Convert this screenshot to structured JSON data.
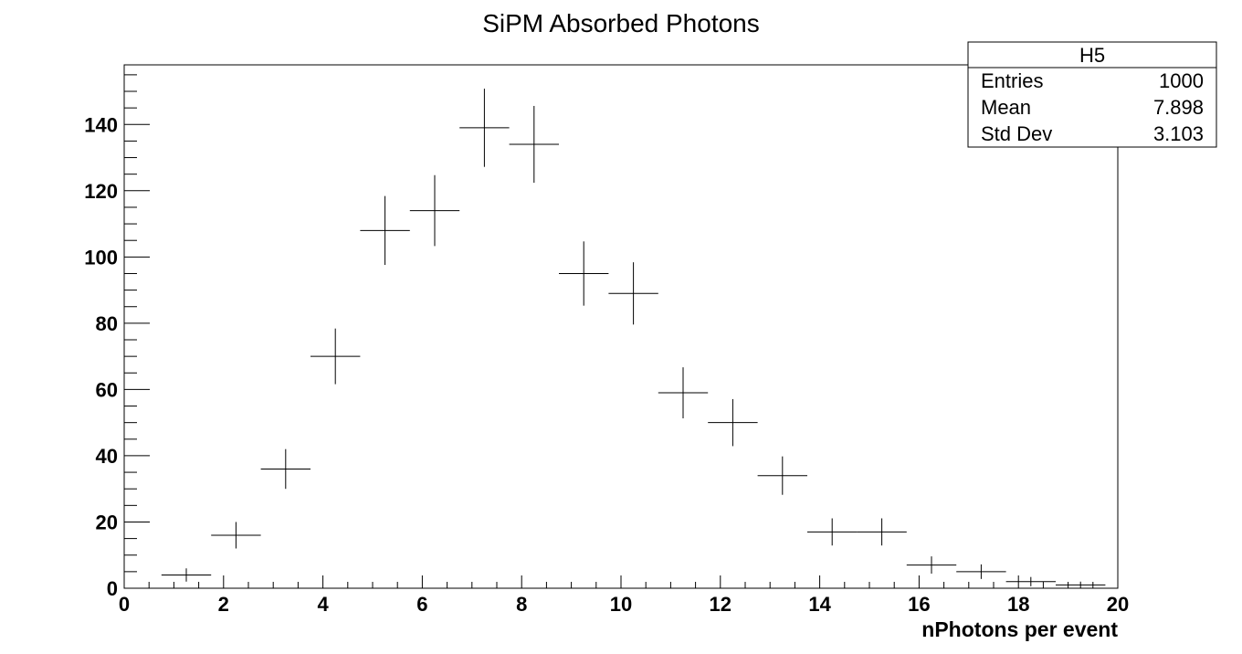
{
  "chart_data": {
    "type": "scatter",
    "title": "SiPM Absorbed Photons",
    "xlabel": "nPhotons per event",
    "ylabel": "",
    "xlim": [
      0,
      20
    ],
    "ylim": [
      0,
      158
    ],
    "x_major_ticks": [
      0,
      2,
      4,
      6,
      8,
      10,
      12,
      14,
      16,
      18,
      20
    ],
    "y_major_ticks": [
      0,
      20,
      40,
      60,
      80,
      100,
      120,
      140
    ],
    "grid": false,
    "bin_width": 1,
    "points": [
      {
        "x": 1.25,
        "y": 4,
        "err": 2
      },
      {
        "x": 2.25,
        "y": 16,
        "err": 4
      },
      {
        "x": 3.25,
        "y": 36,
        "err": 6
      },
      {
        "x": 4.25,
        "y": 70,
        "err": 8.4
      },
      {
        "x": 5.25,
        "y": 108,
        "err": 10.4
      },
      {
        "x": 6.25,
        "y": 114,
        "err": 10.7
      },
      {
        "x": 7.25,
        "y": 139,
        "err": 11.8
      },
      {
        "x": 8.25,
        "y": 134,
        "err": 11.6
      },
      {
        "x": 9.25,
        "y": 95,
        "err": 9.7
      },
      {
        "x": 10.25,
        "y": 89,
        "err": 9.4
      },
      {
        "x": 11.25,
        "y": 59,
        "err": 7.7
      },
      {
        "x": 12.25,
        "y": 50,
        "err": 7.1
      },
      {
        "x": 13.25,
        "y": 34,
        "err": 5.8
      },
      {
        "x": 14.25,
        "y": 17,
        "err": 4.1
      },
      {
        "x": 15.25,
        "y": 17,
        "err": 4.1
      },
      {
        "x": 16.25,
        "y": 7,
        "err": 2.6
      },
      {
        "x": 17.25,
        "y": 5,
        "err": 2.2
      },
      {
        "x": 18.25,
        "y": 2,
        "err": 1.4
      },
      {
        "x": 19.25,
        "y": 1,
        "err": 1
      }
    ],
    "stats_box": {
      "name": "H5",
      "position": "top-right",
      "rows": [
        {
          "label": "Entries",
          "value": "1000"
        },
        {
          "label": "Mean",
          "value": "7.898"
        },
        {
          "label": "Std Dev",
          "value": "3.103"
        }
      ]
    }
  }
}
